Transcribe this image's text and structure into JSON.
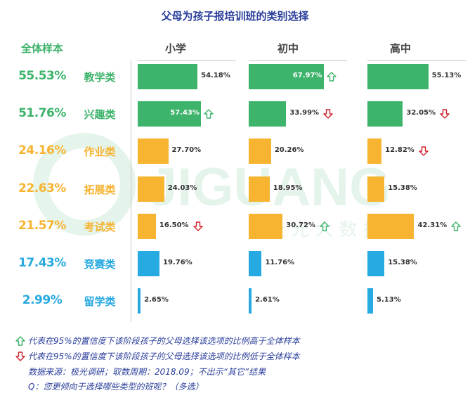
{
  "chart_data": {
    "type": "bar",
    "title": "父母为孩子报培训班的类别选择",
    "total_header": "全体样本",
    "groups": [
      "小学",
      "初中",
      "高中"
    ],
    "categories": [
      "教学类",
      "兴趣类",
      "作业类",
      "拓展类",
      "考试类",
      "竞赛类",
      "留学类"
    ],
    "category_colors": [
      "#3db36b",
      "#3db36b",
      "#f6b431",
      "#f6b431",
      "#f6b431",
      "#27a9e1",
      "#27a9e1"
    ],
    "totals": [
      "55.53%",
      "51.76%",
      "24.16%",
      "22.63%",
      "21.57%",
      "17.43%",
      "2.99%"
    ],
    "series": [
      {
        "name": "小学",
        "values": [
          54.18,
          57.43,
          27.7,
          24.03,
          16.5,
          19.76,
          2.65
        ],
        "labels": [
          "54.18%",
          "57.43%",
          "27.70%",
          "24.03%",
          "16.50%",
          "19.76%",
          "2.65%"
        ],
        "arrows": [
          "",
          "up",
          "",
          "",
          "down",
          "",
          ""
        ]
      },
      {
        "name": "初中",
        "values": [
          67.97,
          33.99,
          20.26,
          18.95,
          30.72,
          11.76,
          2.61
        ],
        "labels": [
          "67.97%",
          "33.99%",
          "20.26%",
          "18.95%",
          "30.72%",
          "11.76%",
          "2.61%"
        ],
        "arrows": [
          "up",
          "down",
          "",
          "",
          "up",
          "",
          ""
        ]
      },
      {
        "name": "高中",
        "values": [
          55.13,
          32.05,
          12.82,
          15.38,
          42.31,
          15.38,
          5.13
        ],
        "labels": [
          "55.13%",
          "32.05%",
          "12.82%",
          "15.38%",
          "42.31%",
          "15.38%",
          "5.13%"
        ],
        "arrows": [
          "",
          "down",
          "down",
          "",
          "up",
          "",
          ""
        ]
      }
    ],
    "ylim": [
      0,
      70
    ]
  },
  "legend": {
    "up_text": "代表在95%的置信度下该阶段孩子的父母选择该选项的比例高于全体样本",
    "down_text": "代表在95%的置信度下该阶段孩子的父母选择该选项的比例低于全体样本",
    "source": "数据来源：极光调研；取数周期：2018.09；不出示“其它”结果",
    "question": "Q：您更倾向于选择哪些类型的班呢？（多选）"
  },
  "watermark": {
    "brand": "JIGUANG",
    "subtitle": "极 光 大 数 据"
  },
  "colors": {
    "up_arrow": "#3db36b",
    "down_arrow": "#d0212a",
    "title": "#2a3e9b"
  }
}
